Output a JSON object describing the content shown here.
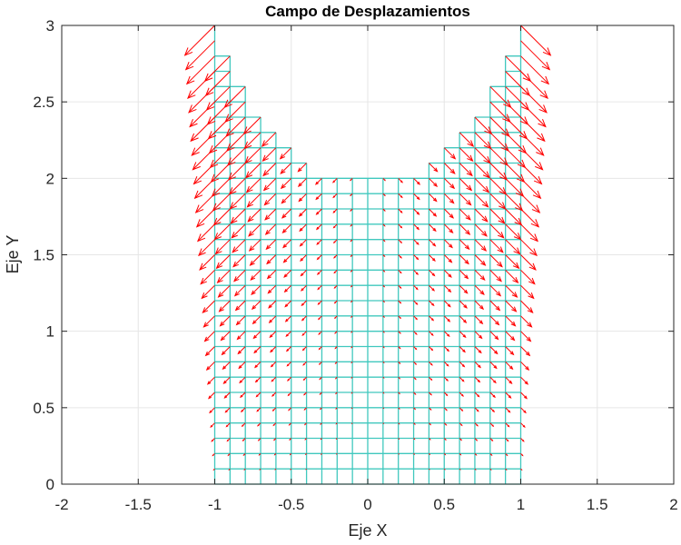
{
  "chart_data": {
    "type": "quiver",
    "title": "Campo de Desplazamientos",
    "xlabel": "Eje X",
    "ylabel": "Eje Y",
    "xlim": [
      -2,
      2
    ],
    "ylim": [
      0,
      3
    ],
    "xticks": [
      -2,
      -1.5,
      -1,
      -0.5,
      0,
      0.5,
      1,
      1.5,
      2
    ],
    "xtick_labels": [
      "-2",
      "-1.5",
      "-1",
      "-0.5",
      "0",
      "0.5",
      "1",
      "1.5",
      "2"
    ],
    "yticks": [
      0,
      0.5,
      1,
      1.5,
      2,
      2.5,
      3
    ],
    "ytick_labels": [
      "0",
      "0.5",
      "1",
      "1.5",
      "2",
      "2.5",
      "3"
    ],
    "grid": true,
    "mesh": {
      "description": "Quadrilateral mesh, spacing 0.1 in x and y, x from -1 to 1",
      "dx": 0.1,
      "dy": 0.1,
      "x_nodes": [
        -1,
        -0.9,
        -0.8,
        -0.7,
        -0.6,
        -0.5,
        -0.4,
        -0.3,
        -0.2,
        -0.1,
        0,
        0.1,
        0.2,
        0.3,
        0.4,
        0.5,
        0.6,
        0.7,
        0.8,
        0.9,
        1
      ],
      "top_height": [
        3.0,
        2.8,
        2.6,
        2.4,
        2.3,
        2.2,
        2.1,
        2.0,
        2.0,
        2.0,
        2.0,
        2.0,
        2.0,
        2.0,
        2.1,
        2.2,
        2.3,
        2.4,
        2.6,
        2.8,
        3.0
      ],
      "color": "#40c8be"
    },
    "displacement": {
      "description": "Arrows at each mesh node pointing outward and downward, magnitude proportional to |x|*y",
      "u_formula": "0.065 * x * y",
      "v_formula": "-0.065 * |x| * y",
      "max_vector_at": {
        "x": 1,
        "y": 3,
        "u": 0.19,
        "v": -0.19
      },
      "color": "#ff0000"
    },
    "colors": {
      "mesh": "#40c8be",
      "arrows": "#ff0000",
      "grid": "#e6e6e6",
      "axes": "#262626"
    }
  }
}
